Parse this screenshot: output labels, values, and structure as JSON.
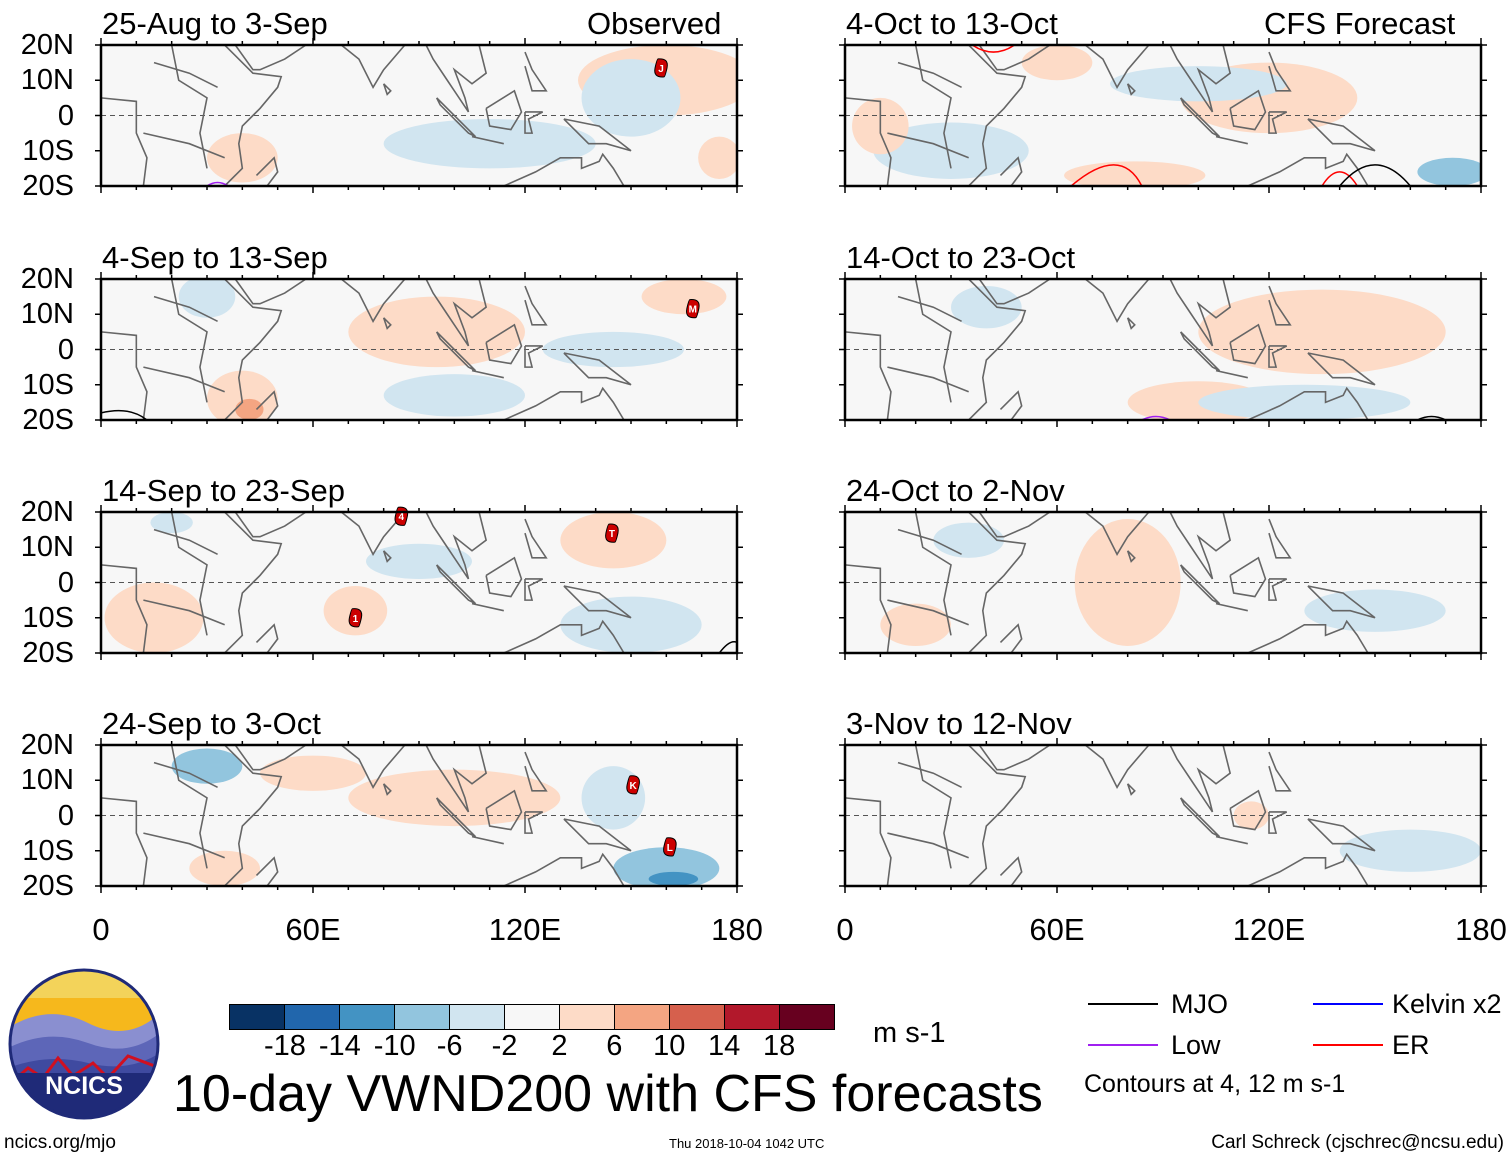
{
  "title": "10-day VWND200 with CFS forecasts",
  "left_header": "Observed",
  "right_header": "CFS Forecast",
  "lat_labels": [
    "20N",
    "10N",
    "0",
    "10S",
    "20S"
  ],
  "lon_labels": [
    "0",
    "60E",
    "120E",
    "180"
  ],
  "colorbar": {
    "unit": "m s-1",
    "ticks": [
      "-18",
      "-14",
      "-10",
      "-6",
      "-2",
      "2",
      "6",
      "10",
      "14",
      "18"
    ],
    "colors": [
      "#083264",
      "#2166ac",
      "#4393c3",
      "#92c5de",
      "#d1e5f0",
      "#f7f7f7",
      "#fddbc7",
      "#f4a582",
      "#d6604d",
      "#b2182b",
      "#67001f"
    ]
  },
  "legend": {
    "items": [
      {
        "label": "MJO",
        "color": "#000000"
      },
      {
        "label": "Kelvin x2",
        "color": "#0000ff"
      },
      {
        "label": "Low",
        "color": "#a020f0"
      },
      {
        "label": "ER",
        "color": "#ff0000"
      }
    ],
    "note": "Contours at 4, 12 m s-1"
  },
  "footer": {
    "url": "ncics.org/mjo",
    "timestamp": "Thu 2018-10-04 1042 UTC",
    "author": "Carl Schreck (cjschrec@ncsu.edu)",
    "logo_text": "NCICS"
  },
  "chart_data": {
    "type": "heatmap",
    "variable": "200-hPa meridional wind anomaly",
    "unit": "m s-1",
    "lon_range": [
      0,
      180
    ],
    "lat_range": [
      -20,
      20
    ],
    "panels": [
      {
        "title": "25-Aug to 3-Sep",
        "source": "Observed",
        "anomalies": [
          [
            160,
            10,
            25,
            10,
            4
          ],
          [
            40,
            -12,
            10,
            7,
            3
          ],
          [
            110,
            -8,
            30,
            7,
            -3
          ],
          [
            150,
            5,
            14,
            11,
            -3
          ],
          [
            175,
            -12,
            6,
            6,
            3
          ]
        ],
        "storms": [
          {
            "label": "J",
            "lon": 158.5,
            "lat": 13.5
          }
        ]
      },
      {
        "title": "4-Sep to 13-Sep",
        "source": "Observed",
        "anomalies": [
          [
            95,
            5,
            25,
            10,
            3
          ],
          [
            40,
            -14,
            10,
            8,
            5
          ],
          [
            42,
            -17,
            4,
            3,
            10
          ],
          [
            165,
            15,
            12,
            5,
            6
          ],
          [
            100,
            -13,
            20,
            6,
            -3
          ],
          [
            145,
            0,
            20,
            5,
            -3
          ],
          [
            30,
            15,
            8,
            6,
            -3
          ]
        ],
        "storms": [
          {
            "label": "M",
            "lon": 167.5,
            "lat": 11.6
          }
        ]
      },
      {
        "title": "14-Sep to 23-Sep",
        "source": "Observed",
        "anomalies": [
          [
            15,
            -10,
            14,
            10,
            4
          ],
          [
            145,
            12,
            15,
            8,
            3
          ],
          [
            72,
            -8,
            9,
            7,
            3
          ],
          [
            150,
            -12,
            20,
            8,
            -3
          ],
          [
            90,
            6,
            15,
            5,
            -3
          ],
          [
            20,
            17,
            6,
            3,
            -3
          ]
        ],
        "storms": [
          {
            "label": "4",
            "lon": 85,
            "lat": 18.8
          },
          {
            "label": "T",
            "lon": 144.6,
            "lat": 14
          },
          {
            "label": "1",
            "lon": 72,
            "lat": -10
          }
        ]
      },
      {
        "title": "24-Sep to 3-Oct",
        "source": "Observed",
        "anomalies": [
          [
            100,
            5,
            30,
            8,
            3
          ],
          [
            30,
            14,
            10,
            5,
            -6
          ],
          [
            35,
            -15,
            10,
            5,
            5
          ],
          [
            160,
            -15,
            15,
            6,
            -6
          ],
          [
            162,
            -18,
            7,
            2,
            -12
          ],
          [
            145,
            5,
            9,
            9,
            -3
          ],
          [
            60,
            12,
            15,
            5,
            3
          ]
        ],
        "storms": [
          {
            "label": "K",
            "lon": 150.6,
            "lat": 8.7
          },
          {
            "label": "L",
            "lon": 161,
            "lat": -8.9
          }
        ]
      },
      {
        "title": "4-Oct to 13-Oct",
        "source": "CFS Forecast",
        "anomalies": [
          [
            30,
            -10,
            22,
            8,
            -4
          ],
          [
            120,
            5,
            25,
            10,
            3
          ],
          [
            82,
            -17,
            20,
            4,
            6
          ],
          [
            172,
            -16,
            10,
            4,
            -6
          ],
          [
            100,
            9,
            25,
            5,
            -3
          ],
          [
            10,
            -3,
            8,
            8,
            3
          ],
          [
            60,
            15,
            10,
            5,
            3
          ]
        ],
        "storms": []
      },
      {
        "title": "14-Oct to 23-Oct",
        "source": "CFS Forecast",
        "anomalies": [
          [
            135,
            5,
            35,
            12,
            3
          ],
          [
            100,
            -15,
            20,
            6,
            3
          ],
          [
            130,
            -15,
            30,
            5,
            -3
          ],
          [
            40,
            12,
            10,
            6,
            -3
          ]
        ],
        "storms": []
      },
      {
        "title": "24-Oct to 2-Nov",
        "source": "CFS Forecast",
        "anomalies": [
          [
            80,
            0,
            15,
            18,
            3
          ],
          [
            20,
            -12,
            10,
            6,
            3
          ],
          [
            150,
            -8,
            20,
            6,
            -3
          ],
          [
            35,
            12,
            10,
            5,
            -3
          ]
        ],
        "storms": []
      },
      {
        "title": "3-Nov to 12-Nov",
        "source": "CFS Forecast",
        "anomalies": [
          [
            160,
            -10,
            20,
            6,
            -3
          ],
          [
            115,
            0,
            5,
            4,
            3
          ]
        ],
        "storms": []
      }
    ]
  }
}
